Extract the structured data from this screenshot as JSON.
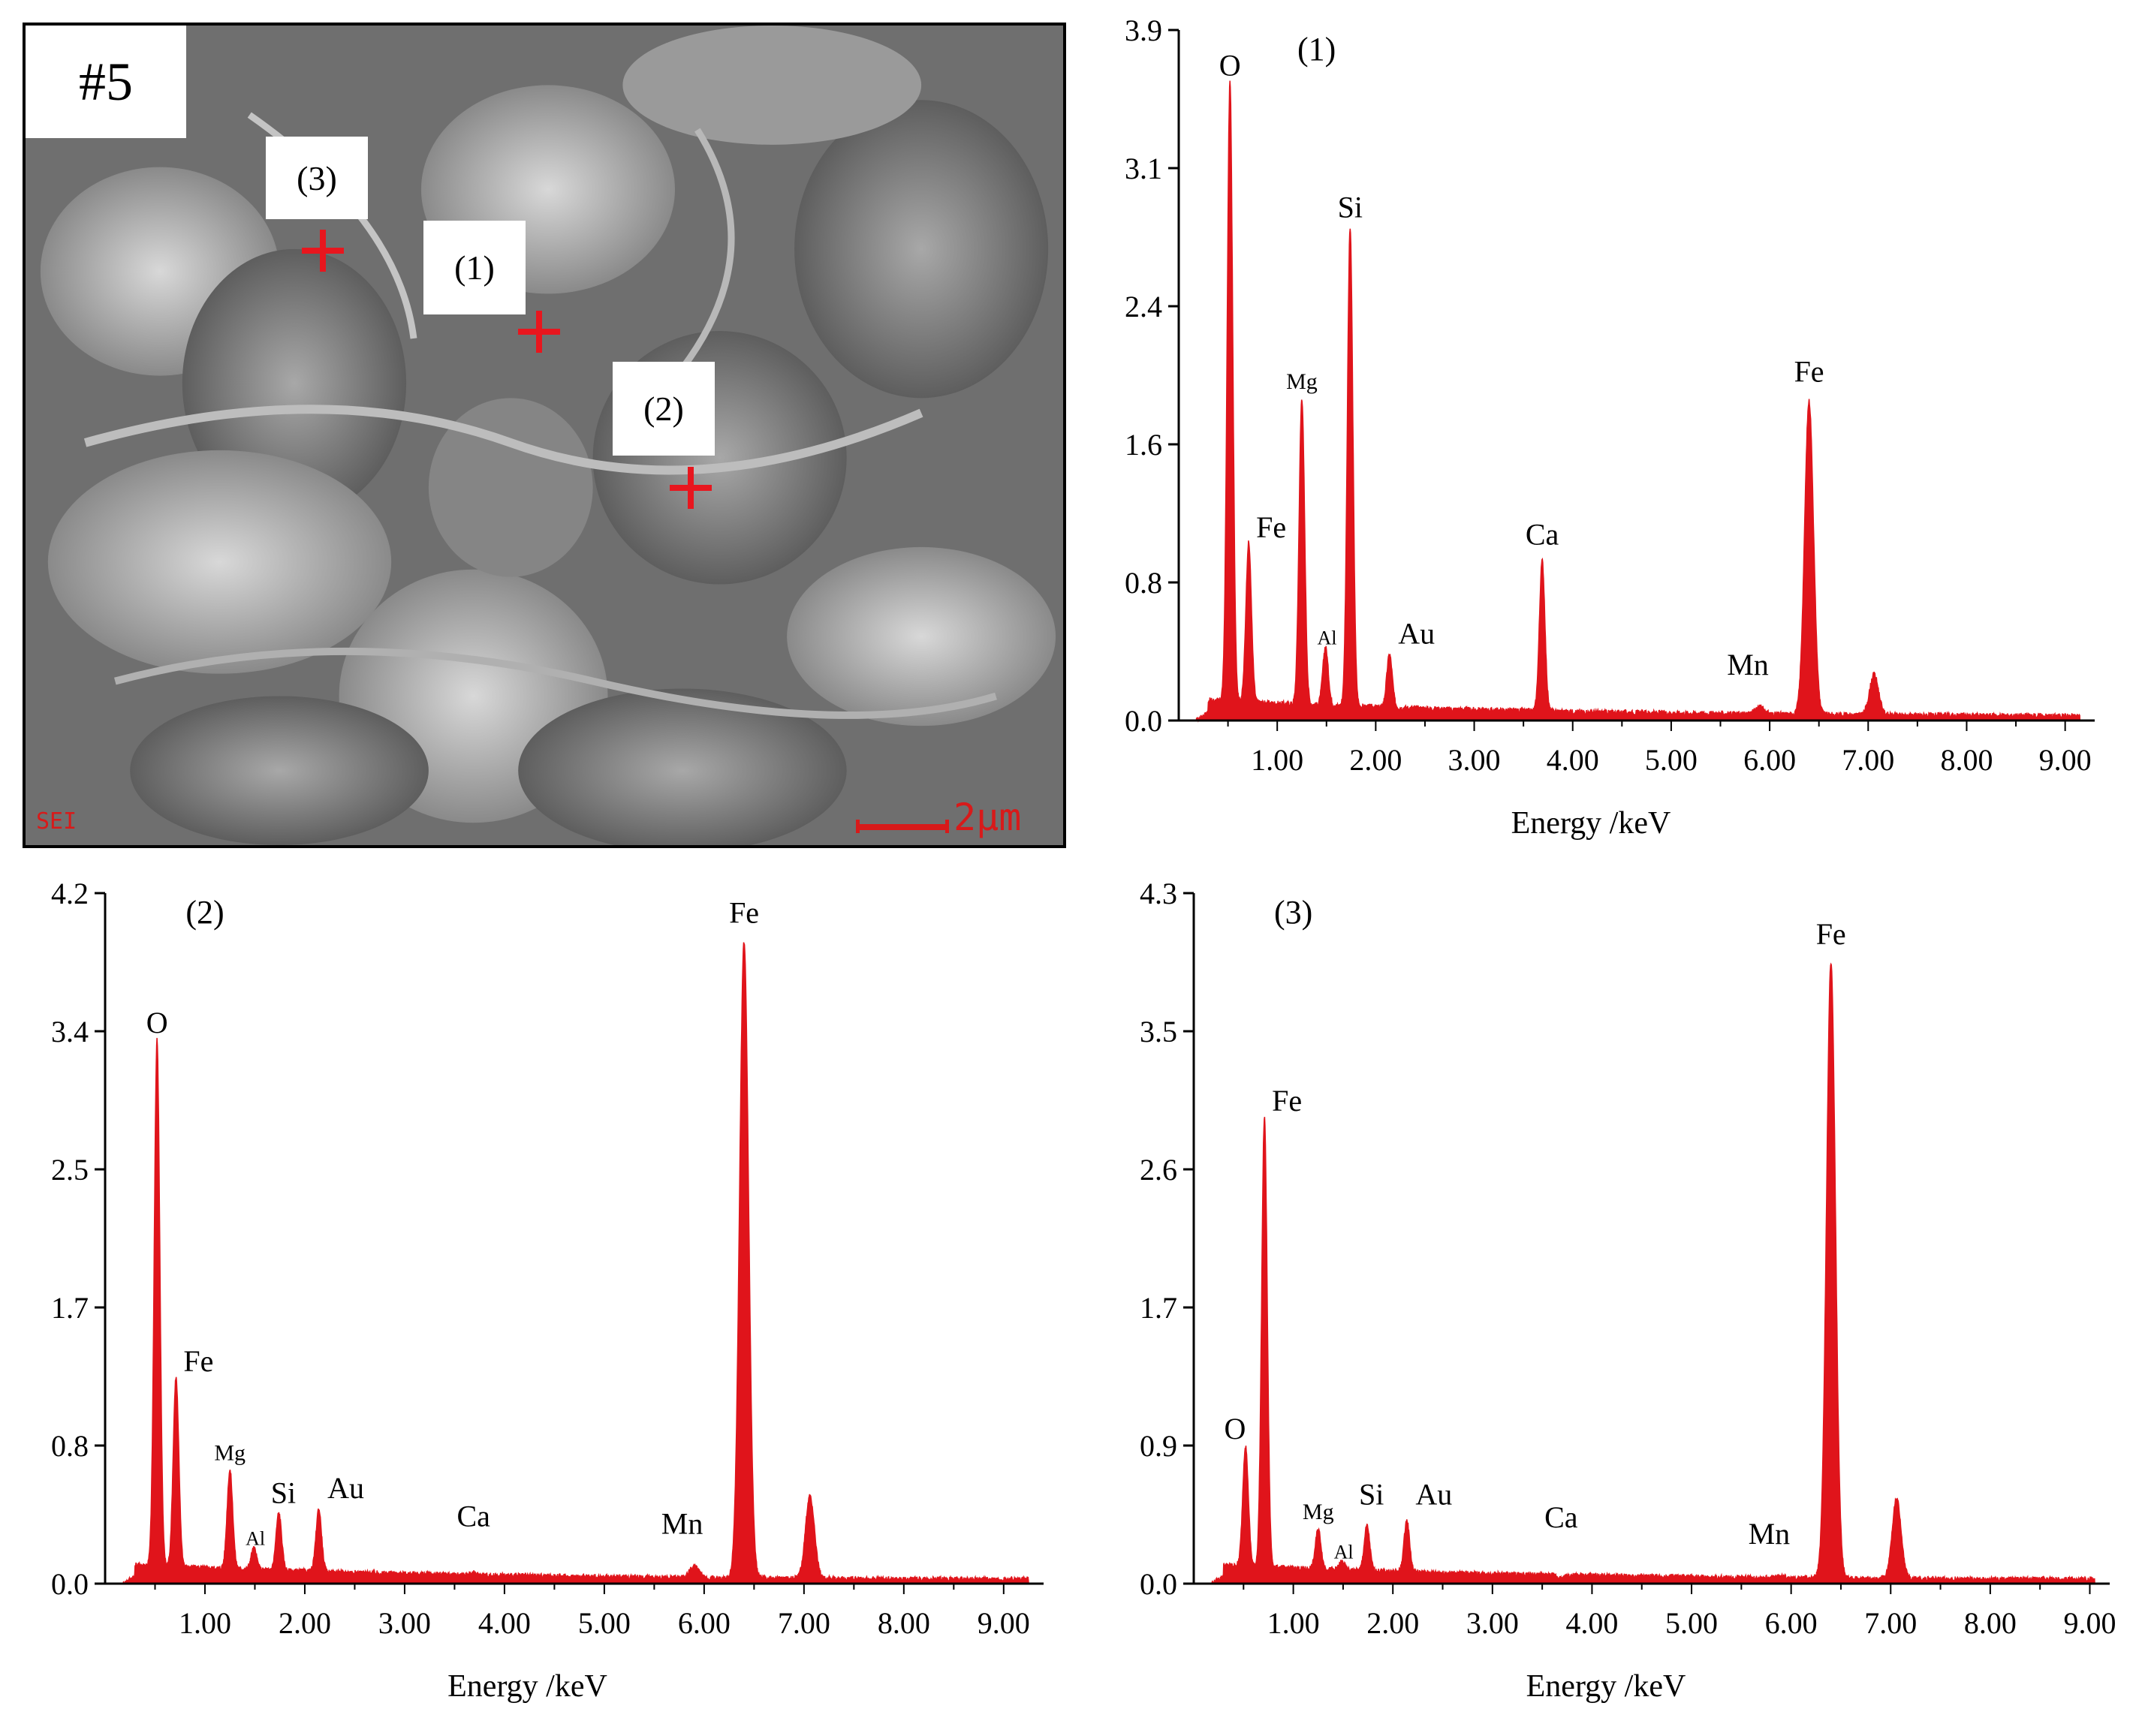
{
  "sem": {
    "sample_label": "#5",
    "points": [
      {
        "label": "(3)"
      },
      {
        "label": "(1)"
      },
      {
        "label": "(2)"
      }
    ],
    "detector": "SEI",
    "scale_label": "2μm",
    "marker_color": "#e8161e"
  },
  "chart_data": [
    {
      "type": "area",
      "title": "(1)",
      "xlabel": "Energy /keV",
      "ylabel": "",
      "xlim": [
        0,
        9.3
      ],
      "ylim": [
        0,
        3.9
      ],
      "x_ticks": [
        "1.00",
        "2.00",
        "3.00",
        "4.00",
        "5.00",
        "6.00",
        "7.00",
        "8.00",
        "9.00"
      ],
      "y_ticks": [
        "0.0",
        "0.8",
        "1.6",
        "2.4",
        "3.1",
        "3.9"
      ],
      "color": "#e0141b",
      "peaks": [
        {
          "label": "O",
          "x": 0.52,
          "y": 3.55
        },
        {
          "label": "Fe",
          "x": 0.71,
          "y": 0.95
        },
        {
          "label": "Mg",
          "x": 1.25,
          "y": 1.78
        },
        {
          "label": "Al",
          "x": 1.49,
          "y": 0.38
        },
        {
          "label": "Si",
          "x": 1.74,
          "y": 2.75
        },
        {
          "label": "Au",
          "x": 2.14,
          "y": 0.35
        },
        {
          "label": "Ca",
          "x": 3.69,
          "y": 0.9
        },
        {
          "label": "Mn",
          "x": 5.9,
          "y": 0.09
        },
        {
          "label": "Fe",
          "x": 6.4,
          "y": 1.82
        },
        {
          "label": "",
          "x": 7.06,
          "y": 0.28
        }
      ]
    },
    {
      "type": "area",
      "title": "(2)",
      "xlabel": "Energy /keV",
      "ylabel": "",
      "xlim": [
        0,
        9.4
      ],
      "ylim": [
        0,
        4.2
      ],
      "x_ticks": [
        "1.00",
        "2.00",
        "3.00",
        "4.00",
        "5.00",
        "6.00",
        "7.00",
        "8.00",
        "9.00"
      ],
      "y_ticks": [
        "0.0",
        "0.8",
        "1.7",
        "2.5",
        "3.4",
        "4.2"
      ],
      "color": "#e0141b",
      "peaks": [
        {
          "label": "O",
          "x": 0.52,
          "y": 3.25
        },
        {
          "label": "Fe",
          "x": 0.71,
          "y": 1.2
        },
        {
          "label": "Mg",
          "x": 1.25,
          "y": 0.65
        },
        {
          "label": "Al",
          "x": 1.49,
          "y": 0.18
        },
        {
          "label": "Si",
          "x": 1.74,
          "y": 0.4
        },
        {
          "label": "Au",
          "x": 2.14,
          "y": 0.43
        },
        {
          "label": "Ca",
          "x": 3.69,
          "y": 0.06
        },
        {
          "label": "Mn",
          "x": 5.9,
          "y": 0.12
        },
        {
          "label": "Fe",
          "x": 6.4,
          "y": 3.92
        },
        {
          "label": "",
          "x": 7.06,
          "y": 0.55
        }
      ]
    },
    {
      "type": "area",
      "title": "(3)",
      "xlabel": "Energy /keV",
      "ylabel": "",
      "xlim": [
        0,
        9.2
      ],
      "ylim": [
        0,
        4.3
      ],
      "x_ticks": [
        "1.00",
        "2.00",
        "3.00",
        "4.00",
        "5.00",
        "6.00",
        "7.00",
        "8.00",
        "9.00"
      ],
      "y_ticks": [
        "0.0",
        "0.9",
        "1.7",
        "2.6",
        "3.5",
        "4.3"
      ],
      "color": "#e0141b",
      "peaks": [
        {
          "label": "O",
          "x": 0.52,
          "y": 0.8
        },
        {
          "label": "Fe",
          "x": 0.71,
          "y": 2.85
        },
        {
          "label": "Mg",
          "x": 1.25,
          "y": 0.3
        },
        {
          "label": "Al",
          "x": 1.49,
          "y": 0.1
        },
        {
          "label": "Si",
          "x": 1.74,
          "y": 0.33
        },
        {
          "label": "Au",
          "x": 2.14,
          "y": 0.37
        },
        {
          "label": "Ca",
          "x": 3.69,
          "y": 0.03
        },
        {
          "label": "Mn",
          "x": 5.9,
          "y": 0.06
        },
        {
          "label": "Fe",
          "x": 6.4,
          "y": 3.88
        },
        {
          "label": "",
          "x": 7.06,
          "y": 0.55
        }
      ]
    }
  ]
}
